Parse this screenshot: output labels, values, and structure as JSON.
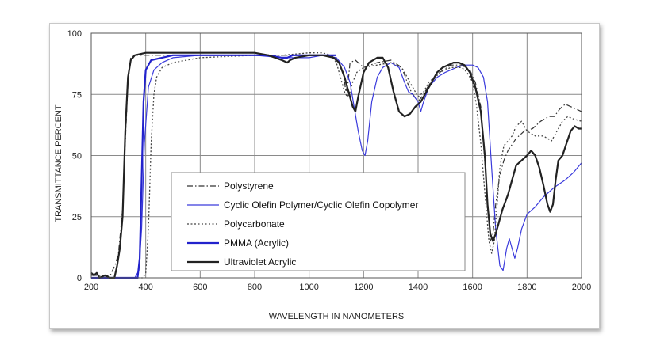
{
  "chart_data": {
    "type": "line",
    "xlabel": "WAVELENGTH IN NANOMETERS",
    "ylabel": "TRANSMITTANCE PERCENT",
    "xlim": [
      200,
      2000
    ],
    "ylim": [
      0,
      100
    ],
    "x_ticks": [
      200,
      400,
      600,
      800,
      1000,
      1200,
      1400,
      1600,
      1800,
      2000
    ],
    "y_ticks": [
      0,
      25,
      50,
      75,
      100
    ],
    "grid": true,
    "legend_position": "lower-center",
    "series": [
      {
        "name": "Polystyrene",
        "color": "#333333",
        "dash": "dashdot",
        "width": 1.2,
        "points": [
          [
            200,
            1
          ],
          [
            240,
            1
          ],
          [
            270,
            1
          ],
          [
            290,
            6
          ],
          [
            300,
            10
          ],
          [
            315,
            28
          ],
          [
            325,
            55
          ],
          [
            335,
            80
          ],
          [
            345,
            90
          ],
          [
            360,
            91
          ],
          [
            400,
            91
          ],
          [
            600,
            91
          ],
          [
            800,
            91
          ],
          [
            900,
            91
          ],
          [
            1000,
            91
          ],
          [
            1080,
            91
          ],
          [
            1100,
            90
          ],
          [
            1125,
            84
          ],
          [
            1135,
            76
          ],
          [
            1143,
            80
          ],
          [
            1150,
            88
          ],
          [
            1170,
            89
          ],
          [
            1200,
            86
          ],
          [
            1250,
            88
          ],
          [
            1300,
            89
          ],
          [
            1340,
            86
          ],
          [
            1360,
            80
          ],
          [
            1375,
            76
          ],
          [
            1400,
            72
          ],
          [
            1420,
            75
          ],
          [
            1440,
            79
          ],
          [
            1480,
            84
          ],
          [
            1520,
            87
          ],
          [
            1560,
            87
          ],
          [
            1590,
            85
          ],
          [
            1610,
            80
          ],
          [
            1630,
            70
          ],
          [
            1650,
            40
          ],
          [
            1665,
            15
          ],
          [
            1675,
            18
          ],
          [
            1685,
            30
          ],
          [
            1700,
            42
          ],
          [
            1715,
            48
          ],
          [
            1730,
            52
          ],
          [
            1760,
            57
          ],
          [
            1790,
            60
          ],
          [
            1820,
            61
          ],
          [
            1850,
            64
          ],
          [
            1880,
            66
          ],
          [
            1900,
            66
          ],
          [
            1920,
            69
          ],
          [
            1940,
            71
          ],
          [
            1960,
            70
          ],
          [
            1980,
            69
          ],
          [
            2000,
            68
          ]
        ]
      },
      {
        "name": "Cyclic Olefin Polymer/Cyclic Olefin Copolymer",
        "color": "#3a3adc",
        "dash": "solid",
        "width": 1.2,
        "points": [
          [
            200,
            0
          ],
          [
            360,
            0
          ],
          [
            375,
            3
          ],
          [
            385,
            20
          ],
          [
            395,
            55
          ],
          [
            410,
            78
          ],
          [
            430,
            85
          ],
          [
            460,
            88
          ],
          [
            500,
            90
          ],
          [
            600,
            91
          ],
          [
            800,
            91
          ],
          [
            900,
            90
          ],
          [
            1000,
            90
          ],
          [
            1050,
            91
          ],
          [
            1100,
            90
          ],
          [
            1130,
            86
          ],
          [
            1150,
            80
          ],
          [
            1165,
            70
          ],
          [
            1180,
            60
          ],
          [
            1195,
            52
          ],
          [
            1205,
            50
          ],
          [
            1215,
            56
          ],
          [
            1230,
            72
          ],
          [
            1250,
            82
          ],
          [
            1270,
            86
          ],
          [
            1300,
            88
          ],
          [
            1330,
            86
          ],
          [
            1350,
            80
          ],
          [
            1365,
            76
          ],
          [
            1380,
            75
          ],
          [
            1400,
            72
          ],
          [
            1410,
            68
          ],
          [
            1420,
            72
          ],
          [
            1440,
            78
          ],
          [
            1470,
            82
          ],
          [
            1500,
            84
          ],
          [
            1540,
            86
          ],
          [
            1570,
            87
          ],
          [
            1600,
            87
          ],
          [
            1620,
            86
          ],
          [
            1640,
            82
          ],
          [
            1655,
            72
          ],
          [
            1670,
            45
          ],
          [
            1685,
            20
          ],
          [
            1700,
            5
          ],
          [
            1712,
            3
          ],
          [
            1725,
            12
          ],
          [
            1735,
            16
          ],
          [
            1745,
            12
          ],
          [
            1755,
            8
          ],
          [
            1765,
            12
          ],
          [
            1780,
            20
          ],
          [
            1800,
            26
          ],
          [
            1830,
            29
          ],
          [
            1860,
            33
          ],
          [
            1900,
            37
          ],
          [
            1940,
            40
          ],
          [
            1970,
            43
          ],
          [
            2000,
            47
          ]
        ]
      },
      {
        "name": "Polycarbonate",
        "color": "#444444",
        "dash": "dotted",
        "width": 1.3,
        "points": [
          [
            200,
            0
          ],
          [
            390,
            0
          ],
          [
            400,
            2
          ],
          [
            410,
            20
          ],
          [
            420,
            55
          ],
          [
            430,
            75
          ],
          [
            440,
            82
          ],
          [
            460,
            86
          ],
          [
            500,
            88
          ],
          [
            600,
            90
          ],
          [
            800,
            91
          ],
          [
            900,
            91
          ],
          [
            1000,
            92
          ],
          [
            1050,
            92
          ],
          [
            1080,
            91
          ],
          [
            1100,
            88
          ],
          [
            1120,
            80
          ],
          [
            1130,
            76
          ],
          [
            1140,
            74
          ],
          [
            1150,
            76
          ],
          [
            1160,
            80
          ],
          [
            1175,
            84
          ],
          [
            1200,
            86
          ],
          [
            1250,
            87
          ],
          [
            1300,
            88
          ],
          [
            1340,
            86
          ],
          [
            1360,
            82
          ],
          [
            1380,
            78
          ],
          [
            1400,
            74
          ],
          [
            1420,
            76
          ],
          [
            1440,
            80
          ],
          [
            1480,
            84
          ],
          [
            1520,
            86
          ],
          [
            1560,
            86
          ],
          [
            1580,
            84
          ],
          [
            1600,
            80
          ],
          [
            1615,
            70
          ],
          [
            1630,
            55
          ],
          [
            1645,
            35
          ],
          [
            1660,
            15
          ],
          [
            1670,
            10
          ],
          [
            1680,
            15
          ],
          [
            1690,
            30
          ],
          [
            1700,
            45
          ],
          [
            1715,
            54
          ],
          [
            1730,
            56
          ],
          [
            1745,
            58
          ],
          [
            1760,
            62
          ],
          [
            1780,
            64
          ],
          [
            1800,
            60
          ],
          [
            1830,
            58
          ],
          [
            1860,
            58
          ],
          [
            1890,
            56
          ],
          [
            1910,
            60
          ],
          [
            1930,
            64
          ],
          [
            1950,
            66
          ],
          [
            1970,
            65
          ],
          [
            2000,
            64
          ]
        ]
      },
      {
        "name": "PMMA (Acrylic)",
        "color": "#2222cc",
        "dash": "solid",
        "width": 2.2,
        "points": [
          [
            200,
            0
          ],
          [
            370,
            0
          ],
          [
            378,
            8
          ],
          [
            385,
            40
          ],
          [
            392,
            72
          ],
          [
            400,
            85
          ],
          [
            420,
            89
          ],
          [
            460,
            90
          ],
          [
            500,
            91
          ],
          [
            600,
            91
          ],
          [
            700,
            91
          ],
          [
            800,
            91
          ],
          [
            850,
            91
          ],
          [
            900,
            90
          ],
          [
            920,
            90
          ],
          [
            940,
            91
          ],
          [
            1000,
            91
          ],
          [
            1050,
            91
          ],
          [
            1100,
            91
          ]
        ]
      },
      {
        "name": "Ultraviolet  Acrylic",
        "color": "#222222",
        "dash": "solid",
        "width": 2.2,
        "points": [
          [
            200,
            2
          ],
          [
            210,
            1
          ],
          [
            220,
            2
          ],
          [
            230,
            0
          ],
          [
            250,
            1
          ],
          [
            270,
            0
          ],
          [
            285,
            0
          ],
          [
            295,
            5
          ],
          [
            305,
            12
          ],
          [
            315,
            25
          ],
          [
            325,
            60
          ],
          [
            335,
            82
          ],
          [
            345,
            89
          ],
          [
            360,
            91
          ],
          [
            400,
            92
          ],
          [
            500,
            92
          ],
          [
            600,
            92
          ],
          [
            700,
            92
          ],
          [
            800,
            92
          ],
          [
            850,
            91
          ],
          [
            900,
            89
          ],
          [
            920,
            88
          ],
          [
            930,
            89
          ],
          [
            950,
            90
          ],
          [
            1000,
            91
          ],
          [
            1050,
            91
          ],
          [
            1090,
            90
          ],
          [
            1110,
            88
          ],
          [
            1130,
            82
          ],
          [
            1145,
            76
          ],
          [
            1160,
            70
          ],
          [
            1170,
            68
          ],
          [
            1180,
            74
          ],
          [
            1200,
            84
          ],
          [
            1220,
            88
          ],
          [
            1250,
            90
          ],
          [
            1270,
            90
          ],
          [
            1290,
            86
          ],
          [
            1310,
            76
          ],
          [
            1330,
            68
          ],
          [
            1350,
            66
          ],
          [
            1370,
            67
          ],
          [
            1390,
            70
          ],
          [
            1410,
            72
          ],
          [
            1430,
            76
          ],
          [
            1450,
            80
          ],
          [
            1470,
            84
          ],
          [
            1490,
            86
          ],
          [
            1510,
            87
          ],
          [
            1530,
            88
          ],
          [
            1550,
            88
          ],
          [
            1570,
            87
          ],
          [
            1590,
            84
          ],
          [
            1610,
            78
          ],
          [
            1630,
            68
          ],
          [
            1645,
            50
          ],
          [
            1655,
            30
          ],
          [
            1665,
            18
          ],
          [
            1675,
            15
          ],
          [
            1685,
            18
          ],
          [
            1695,
            22
          ],
          [
            1710,
            28
          ],
          [
            1730,
            34
          ],
          [
            1745,
            40
          ],
          [
            1760,
            46
          ],
          [
            1780,
            48
          ],
          [
            1800,
            50
          ],
          [
            1815,
            52
          ],
          [
            1830,
            50
          ],
          [
            1845,
            45
          ],
          [
            1860,
            38
          ],
          [
            1875,
            30
          ],
          [
            1885,
            27
          ],
          [
            1895,
            30
          ],
          [
            1905,
            40
          ],
          [
            1915,
            48
          ],
          [
            1930,
            50
          ],
          [
            1945,
            55
          ],
          [
            1960,
            60
          ],
          [
            1975,
            62
          ],
          [
            1990,
            61
          ],
          [
            2000,
            61
          ]
        ]
      }
    ]
  }
}
